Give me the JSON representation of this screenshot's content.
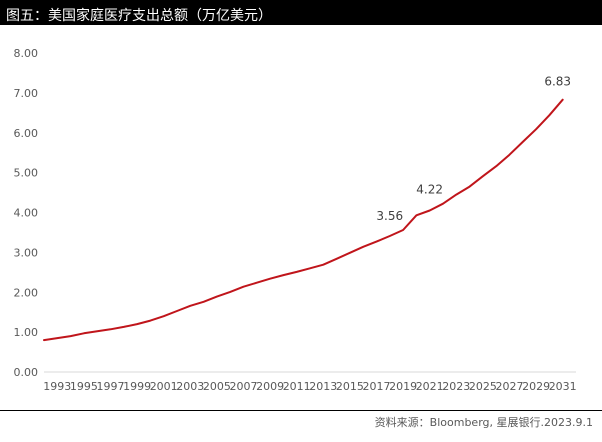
{
  "header": {
    "title": "图五：美国家庭医疗支出总额（万亿美元）"
  },
  "footer": {
    "source": "资料来源：Bloomberg, 星展银行.2023.9.1"
  },
  "colors": {
    "line": "#c0151b",
    "title_bg": "#000000",
    "axis": "#d9d9d9",
    "tick_text": "#595959"
  },
  "chart_data": {
    "type": "line",
    "title": "图五：美国家庭医疗支出总额（万亿美元）",
    "xlabel": "",
    "ylabel": "",
    "ylim": [
      0,
      8
    ],
    "yticks": [
      "0.00",
      "1.00",
      "2.00",
      "3.00",
      "4.00",
      "5.00",
      "6.00",
      "7.00",
      "8.00"
    ],
    "xticks": [
      "1993",
      "1995",
      "1997",
      "1999",
      "2001",
      "2003",
      "2005",
      "2007",
      "2009",
      "2011",
      "2013",
      "2015",
      "2017",
      "2019",
      "2021",
      "2023",
      "2025",
      "2027",
      "2029",
      "2031"
    ],
    "grid": false,
    "legend": "none",
    "x": [
      1992,
      1993,
      1994,
      1995,
      1996,
      1997,
      1998,
      1999,
      2000,
      2001,
      2002,
      2003,
      2004,
      2005,
      2006,
      2007,
      2008,
      2009,
      2010,
      2011,
      2012,
      2013,
      2014,
      2015,
      2016,
      2017,
      2018,
      2019,
      2020,
      2021,
      2022,
      2023,
      2024,
      2025,
      2026,
      2027,
      2028,
      2029,
      2030,
      2031
    ],
    "series": [
      {
        "values": [
          0.8,
          0.85,
          0.9,
          0.97,
          1.02,
          1.07,
          1.13,
          1.2,
          1.29,
          1.4,
          1.53,
          1.66,
          1.76,
          1.89,
          2.01,
          2.14,
          2.24,
          2.34,
          2.43,
          2.51,
          2.6,
          2.69,
          2.84,
          2.99,
          3.14,
          3.27,
          3.41,
          3.56,
          3.93,
          4.05,
          4.22,
          4.45,
          4.65,
          4.91,
          5.16,
          5.45,
          5.77,
          6.09,
          6.44,
          6.83
        ]
      }
    ],
    "data_labels": [
      {
        "x": 2019,
        "text": "3.56"
      },
      {
        "x": 2022,
        "text": "4.22"
      },
      {
        "x": 2031,
        "text": "6.83"
      }
    ]
  }
}
